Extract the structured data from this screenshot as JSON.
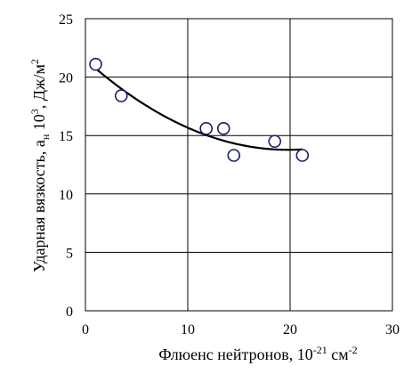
{
  "chart_data": {
    "type": "scatter",
    "title": "",
    "xlabel": "Флюенс нейтронов, 10",
    "xlabel_sup": "-21",
    "xlabel_unit": " см",
    "xlabel_unit_sup": "-2",
    "ylabel": "Ударная вязкость, a",
    "ylabel_sub": "н",
    "ylabel_mid": " 10",
    "ylabel_sup": "3",
    "ylabel_unit": ", Дж/м",
    "ylabel_unit_sup": "2",
    "xlim": [
      0,
      30
    ],
    "ylim": [
      0,
      25
    ],
    "xticks": [
      0,
      10,
      20,
      30
    ],
    "yticks": [
      0,
      5,
      10,
      15,
      20,
      25
    ],
    "grid": true,
    "series": [
      {
        "kind": "points",
        "marker": "open-circle",
        "x": [
          1.0,
          3.5,
          11.8,
          13.5,
          14.5,
          18.5,
          21.2
        ],
        "y": [
          21.1,
          18.4,
          15.6,
          15.6,
          13.3,
          14.5,
          13.3
        ]
      },
      {
        "kind": "trend",
        "fit": "quadratic",
        "x_range": [
          1.0,
          21.2
        ],
        "coefficients": [
          21.5,
          -0.78,
          0.0197
        ]
      }
    ]
  }
}
